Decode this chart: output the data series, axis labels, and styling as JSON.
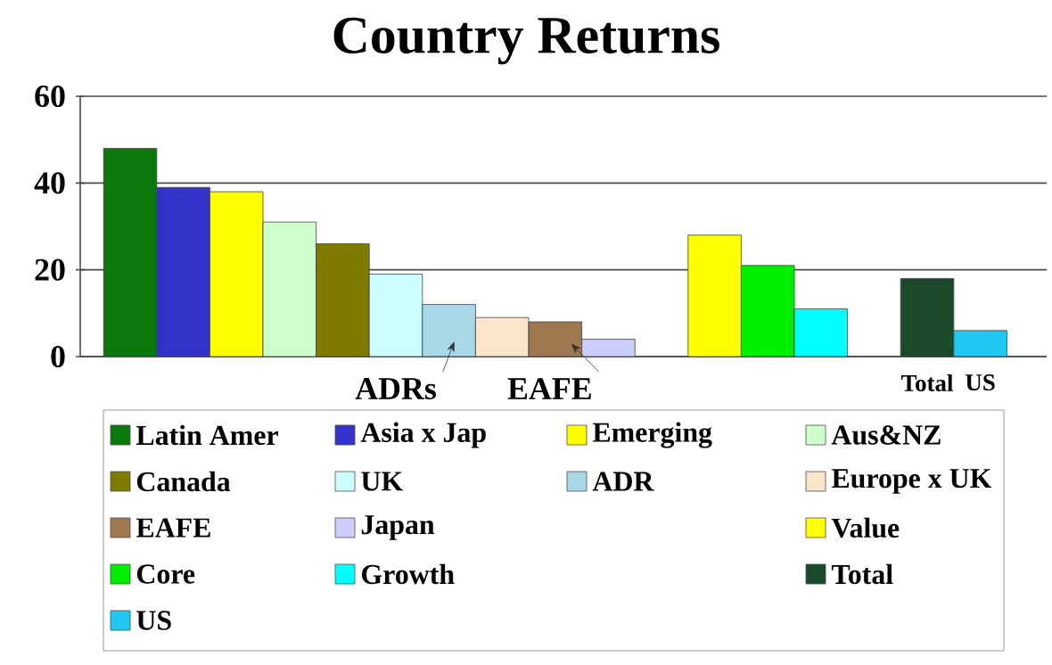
{
  "chart_data": {
    "type": "bar",
    "title": "Country Returns",
    "categories": [
      null,
      null,
      null,
      null,
      null,
      null,
      null,
      null,
      null,
      null,
      null,
      null,
      null,
      null,
      null,
      "Total",
      "US"
    ],
    "series": [
      {
        "name": "Latin Amer",
        "color": "#0b780b",
        "values": [
          48,
          null,
          null,
          null,
          null,
          null,
          null,
          null,
          null,
          null,
          null,
          null,
          null,
          null,
          null,
          null,
          null
        ]
      },
      {
        "name": "Asia x Jap",
        "color": "#3333cc",
        "values": [
          null,
          39,
          null,
          null,
          null,
          null,
          null,
          null,
          null,
          null,
          null,
          null,
          null,
          null,
          null,
          null,
          null
        ]
      },
      {
        "name": "Emerging",
        "color": "#ffff00",
        "values": [
          null,
          null,
          38,
          null,
          null,
          null,
          null,
          null,
          null,
          null,
          null,
          null,
          null,
          null,
          null,
          null,
          null
        ]
      },
      {
        "name": "Aus&NZ",
        "color": "#ccffcc",
        "values": [
          null,
          null,
          null,
          31,
          null,
          null,
          null,
          null,
          null,
          null,
          null,
          null,
          null,
          null,
          null,
          null,
          null
        ]
      },
      {
        "name": "Canada",
        "color": "#7f7a00",
        "values": [
          null,
          null,
          null,
          null,
          26,
          null,
          null,
          null,
          null,
          null,
          null,
          null,
          null,
          null,
          null,
          null,
          null
        ]
      },
      {
        "name": "UK",
        "color": "#ccffff",
        "values": [
          null,
          null,
          null,
          null,
          null,
          19,
          null,
          null,
          null,
          null,
          null,
          null,
          null,
          null,
          null,
          null,
          null
        ]
      },
      {
        "name": "ADR",
        "color": "#a8d8e8",
        "values": [
          null,
          null,
          null,
          null,
          null,
          null,
          12,
          null,
          null,
          null,
          null,
          null,
          null,
          null,
          null,
          null,
          null
        ]
      },
      {
        "name": "Europe x UK",
        "color": "#fbe5c8",
        "values": [
          null,
          null,
          null,
          null,
          null,
          null,
          null,
          9,
          null,
          null,
          null,
          null,
          null,
          null,
          null,
          null,
          null
        ]
      },
      {
        "name": "EAFE",
        "color": "#a07850",
        "values": [
          null,
          null,
          null,
          null,
          null,
          null,
          null,
          null,
          8,
          null,
          null,
          null,
          null,
          null,
          null,
          null,
          null
        ]
      },
      {
        "name": "Japan",
        "color": "#ccccff",
        "values": [
          null,
          null,
          null,
          null,
          null,
          null,
          null,
          null,
          null,
          4,
          null,
          null,
          null,
          null,
          null,
          null,
          null
        ]
      },
      {
        "name": "Value",
        "color": "#ffff00",
        "values": [
          null,
          null,
          null,
          null,
          null,
          null,
          null,
          null,
          null,
          null,
          null,
          28,
          null,
          null,
          null,
          null,
          null
        ]
      },
      {
        "name": "Core",
        "color": "#00ee00",
        "values": [
          null,
          null,
          null,
          null,
          null,
          null,
          null,
          null,
          null,
          null,
          null,
          null,
          21,
          null,
          null,
          null,
          null
        ]
      },
      {
        "name": "Growth",
        "color": "#00ffff",
        "values": [
          null,
          null,
          null,
          null,
          null,
          null,
          null,
          null,
          null,
          null,
          null,
          null,
          null,
          11,
          null,
          null,
          null
        ]
      },
      {
        "name": "Total",
        "color": "#1a4a2a",
        "values": [
          null,
          null,
          null,
          null,
          null,
          null,
          null,
          null,
          null,
          null,
          null,
          null,
          null,
          null,
          null,
          18,
          null
        ]
      },
      {
        "name": "US",
        "color": "#1ec8f0",
        "values": [
          null,
          null,
          null,
          null,
          null,
          null,
          null,
          null,
          null,
          null,
          null,
          null,
          null,
          null,
          null,
          null,
          6
        ]
      }
    ],
    "ylim": [
      0,
      60
    ],
    "yticks": [
      0,
      20,
      40,
      60
    ],
    "grid": "y",
    "legend": "bottom",
    "annotations": [
      "ADRs",
      "EAFE"
    ]
  }
}
